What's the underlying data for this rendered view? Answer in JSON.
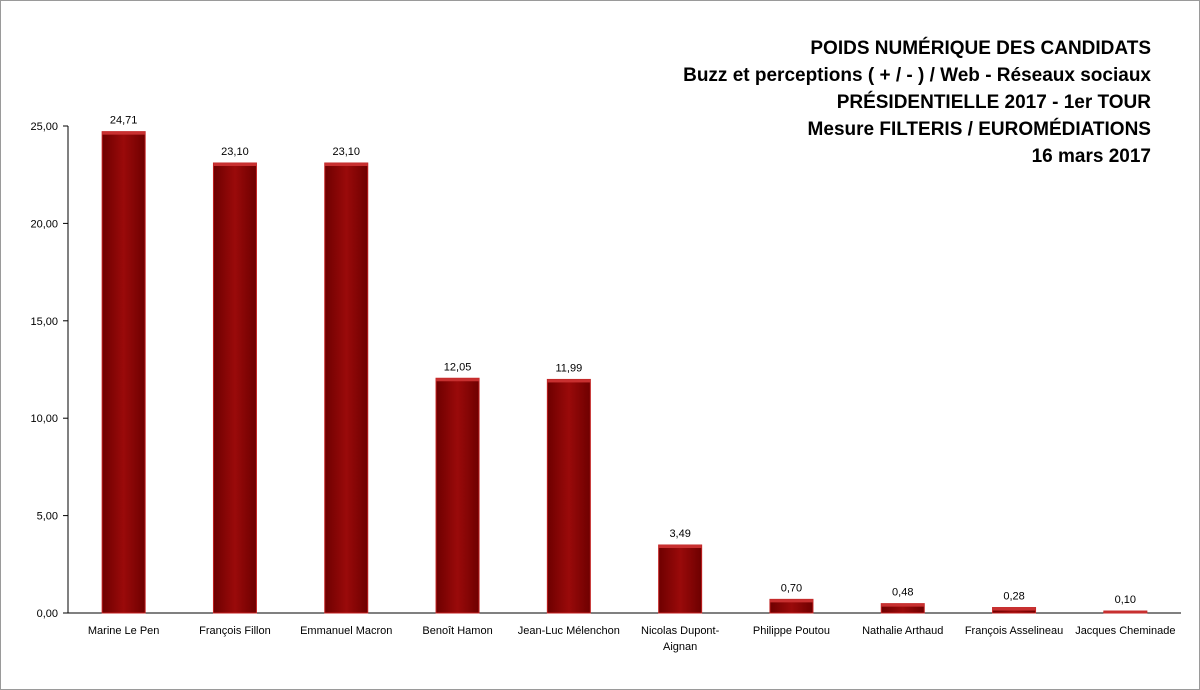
{
  "chart_data": {
    "type": "bar",
    "title_lines": [
      "POIDS NUMÉRIQUE DES CANDIDATS",
      "Buzz et perceptions ( + / - ) / Web - Réseaux sociaux",
      "PRÉSIDENTIELLE 2017 - 1er TOUR",
      "Mesure FILTERIS / EUROMÉDIATIONS",
      "16 mars 2017"
    ],
    "categories": [
      [
        "Marine Le Pen"
      ],
      [
        "François Fillon"
      ],
      [
        "Emmanuel Macron"
      ],
      [
        "Benoît Hamon"
      ],
      [
        "Jean-Luc Mélenchon"
      ],
      [
        "Nicolas Dupont-",
        "Aignan"
      ],
      [
        "Philippe Poutou"
      ],
      [
        "Nathalie Arthaud"
      ],
      [
        "François Asselineau"
      ],
      [
        "Jacques Cheminade"
      ]
    ],
    "values": [
      24.71,
      23.1,
      23.1,
      12.05,
      11.99,
      3.49,
      0.7,
      0.48,
      0.28,
      0.1
    ],
    "data_labels": [
      "24,71",
      "23,10",
      "23,10",
      "12,05",
      "11,99",
      "3,49",
      "0,70",
      "0,48",
      "0,28",
      "0,10"
    ],
    "y_ticks": [
      0,
      5,
      10,
      15,
      20,
      25
    ],
    "y_tick_labels": [
      "0,00",
      "5,00",
      "10,00",
      "15,00",
      "20,00",
      "25,00"
    ],
    "ylim": [
      0,
      25
    ],
    "xlabel": "",
    "ylabel": "",
    "grid": false,
    "legend": "none",
    "bar_color": "#8b0000",
    "bar_edge_color": "#c02020"
  }
}
